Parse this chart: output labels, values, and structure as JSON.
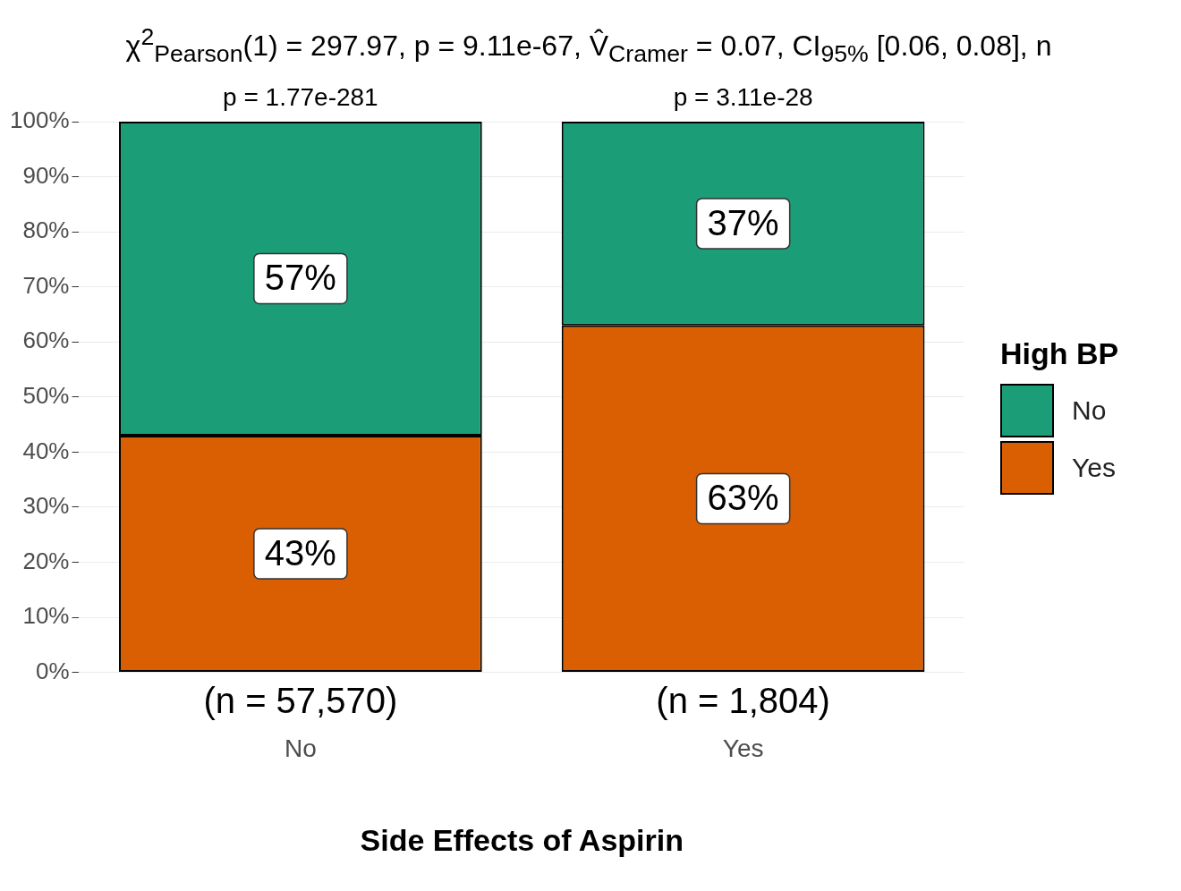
{
  "chart_data": {
    "type": "bar",
    "stacked": true,
    "title": "χ$^{2}$$_{Pearson}$(1) = 297.97, p = 9.11e-67, V̂$_{Cramer}$ = 0.07, CI$_{95%}$ [0.06, 0.08], n",
    "xlabel": "Side Effects of Aspirin",
    "legend_title": "High BP",
    "legend": "right",
    "grid": "y",
    "categories": [
      "No",
      "Yes"
    ],
    "series": [
      {
        "name": "Yes",
        "color": "#d95f02",
        "values": [
          43,
          63
        ],
        "value_labels": [
          "43%",
          "63%"
        ]
      },
      {
        "name": "No",
        "color": "#1b9e77",
        "values": [
          57,
          37
        ],
        "value_labels": [
          "57%",
          "37%"
        ]
      }
    ],
    "ylim": [
      0,
      100
    ],
    "yticks": [
      {
        "value": 0,
        "label": "0%"
      },
      {
        "value": 10,
        "label": "10%"
      },
      {
        "value": 20,
        "label": "20%"
      },
      {
        "value": 30,
        "label": "30%"
      },
      {
        "value": 40,
        "label": "40%"
      },
      {
        "value": 50,
        "label": "50%"
      },
      {
        "value": 60,
        "label": "60%"
      },
      {
        "value": 70,
        "label": "70%"
      },
      {
        "value": 80,
        "label": "80%"
      },
      {
        "value": 90,
        "label": "90%"
      },
      {
        "value": 100,
        "label": "100%"
      }
    ],
    "annotations": [
      {
        "text": "p = 1.77e-281",
        "x": "No",
        "y": 100
      },
      {
        "text": "p = 3.11e-28",
        "x": "Yes",
        "y": 100
      },
      {
        "text": "(n = 57,570)",
        "x": "No",
        "y": 0
      },
      {
        "text": "(n = 1,804)",
        "x": "Yes",
        "y": 0
      }
    ]
  }
}
